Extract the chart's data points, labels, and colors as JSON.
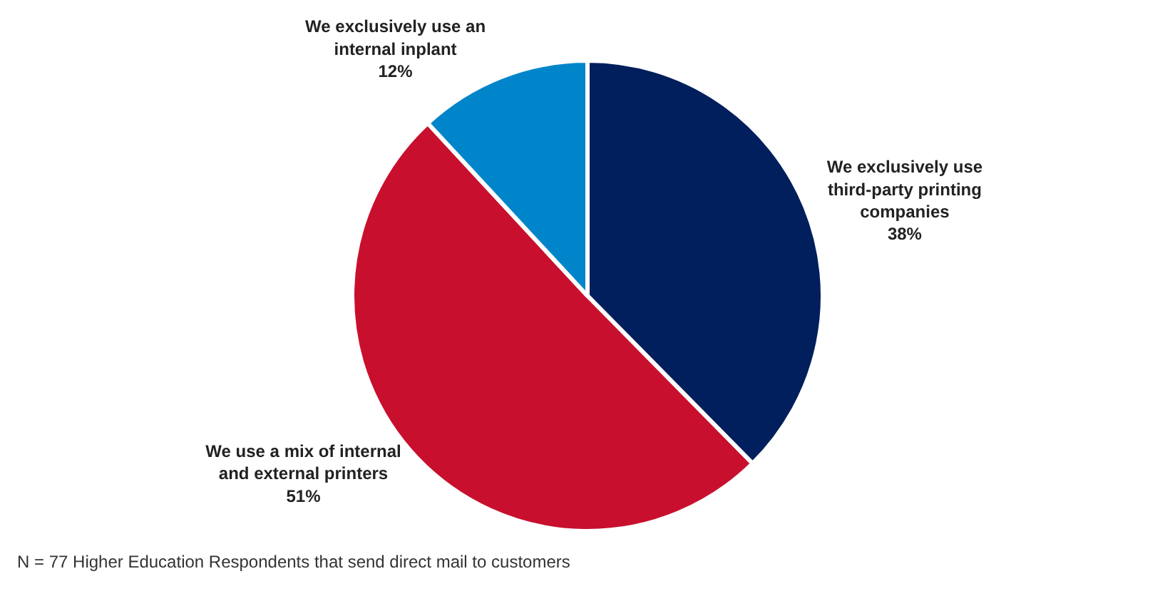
{
  "chart_data": {
    "type": "pie",
    "categories": [
      "We exclusively use third-party printing companies",
      "We use a mix of internal and external printers",
      "We exclusively use an internal inplant"
    ],
    "values": [
      38,
      51,
      12
    ],
    "value_labels": [
      "38%",
      "51%",
      "12%"
    ],
    "colors": [
      "#001f5c",
      "#c8102e",
      "#0085ca"
    ],
    "annotations": [
      "N = 77 Higher Education Respondents that send direct mail to customers"
    ]
  }
}
